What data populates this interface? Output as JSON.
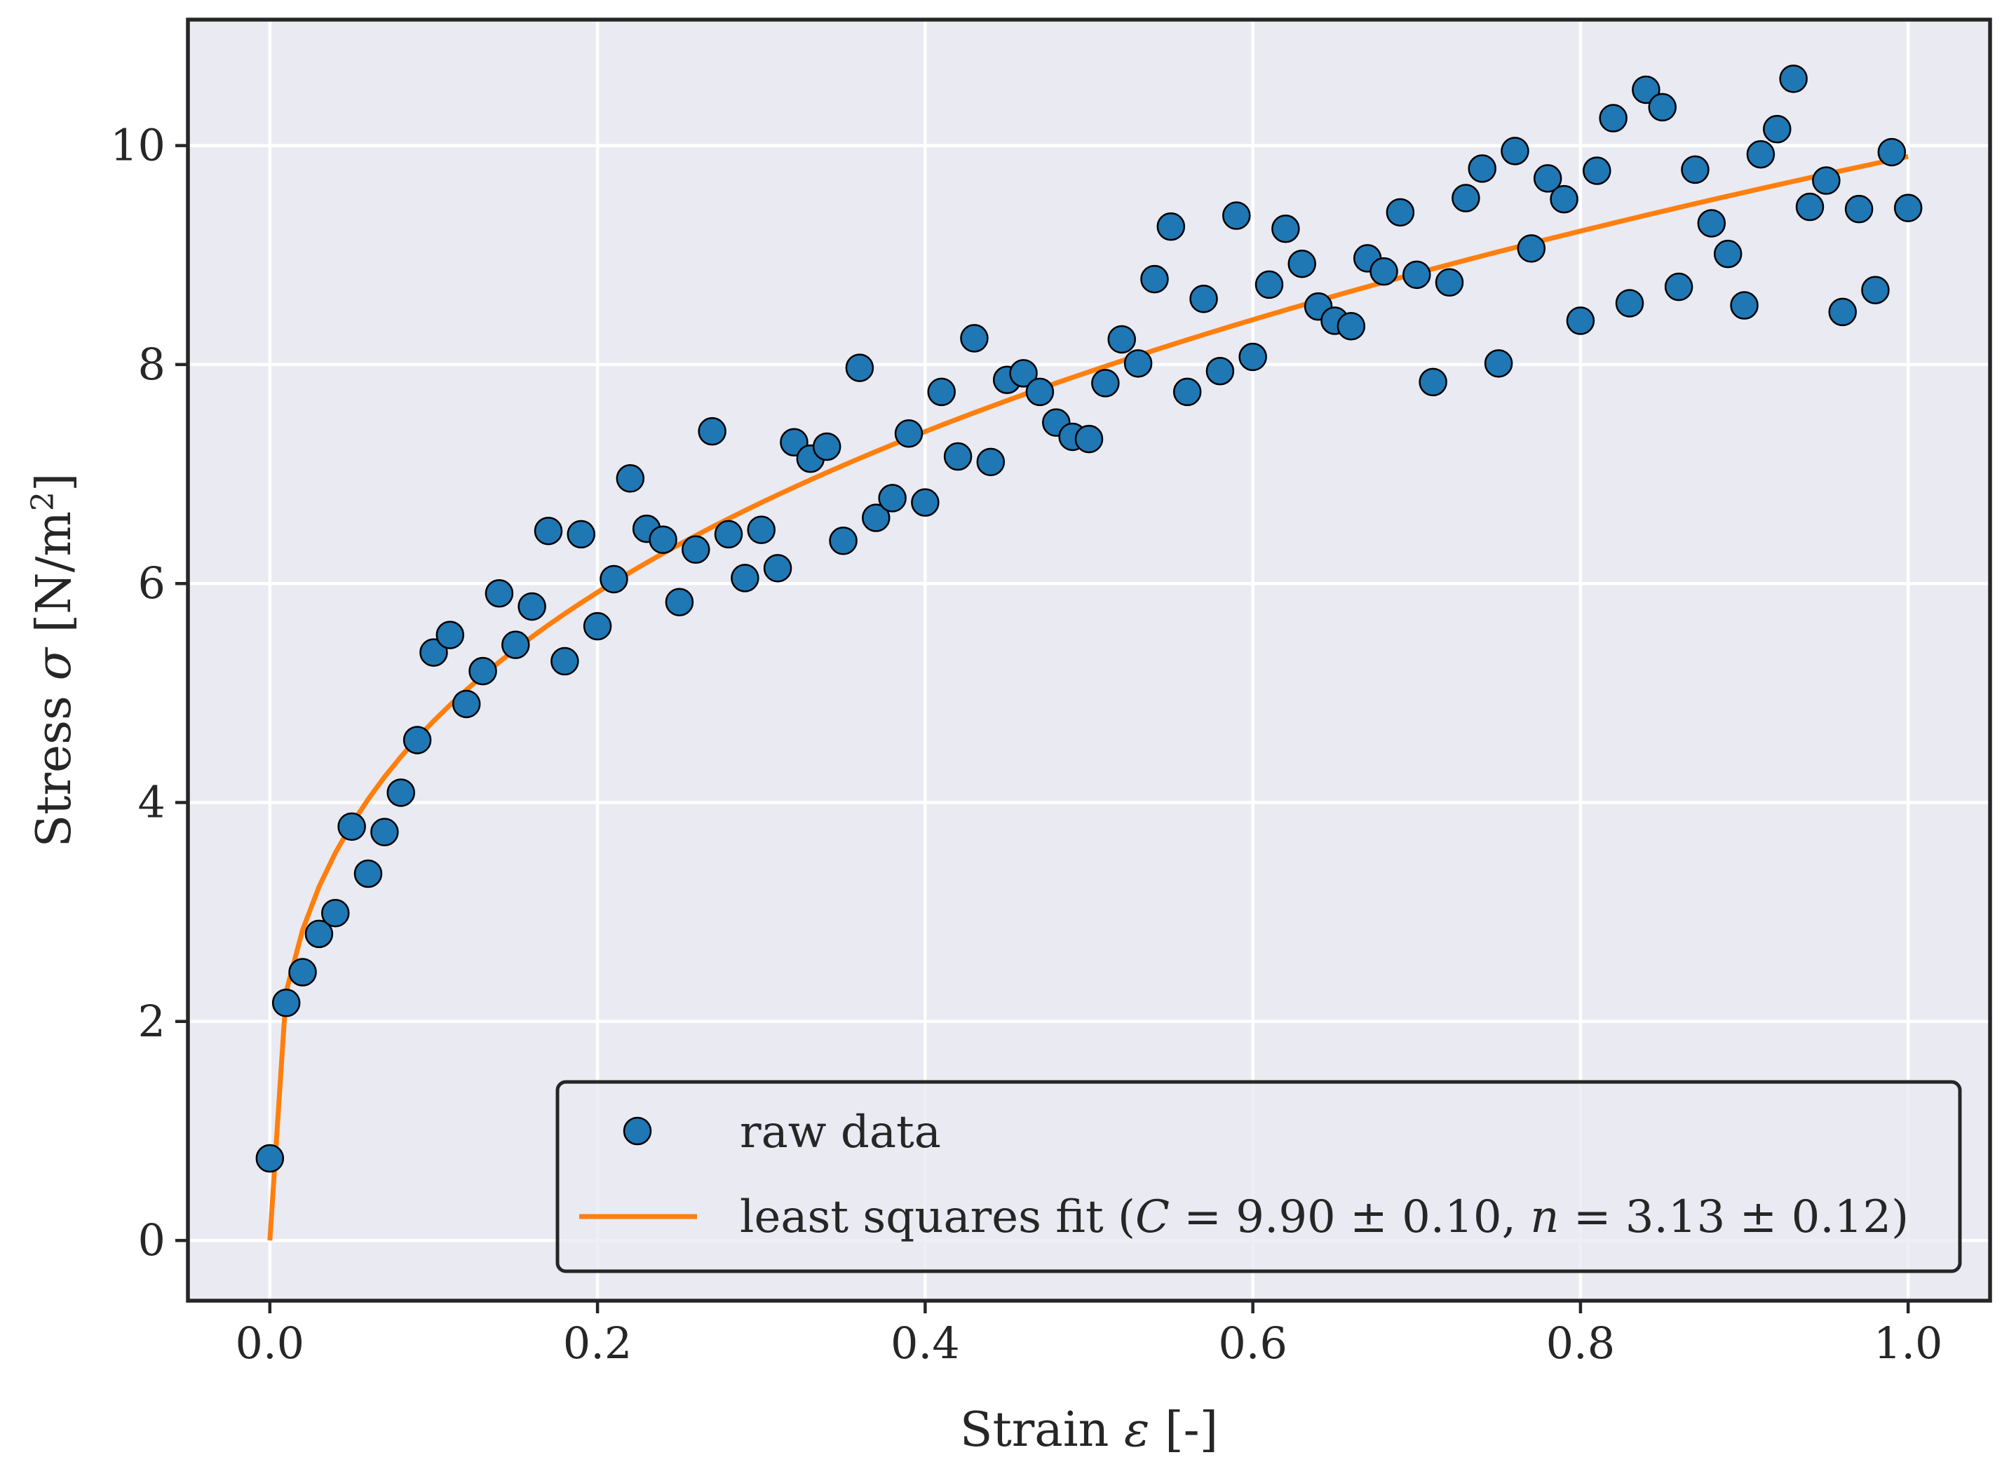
{
  "chart_data": {
    "type": "scatter",
    "xlabel": {
      "pre": "Strain ",
      "sym": "ε",
      "post": " [-]"
    },
    "ylabel": {
      "pre": "Stress ",
      "sym": "σ",
      "post": " [N/m",
      "sup": "2",
      "close": "]"
    },
    "xlim": [
      -0.05,
      1.05
    ],
    "ylim": [
      -0.55,
      11.15
    ],
    "xticks": [
      {
        "value": 0.0,
        "label": "0.0"
      },
      {
        "value": 0.2,
        "label": "0.2"
      },
      {
        "value": 0.4,
        "label": "0.4"
      },
      {
        "value": 0.6,
        "label": "0.6"
      },
      {
        "value": 0.8,
        "label": "0.8"
      },
      {
        "value": 1.0,
        "label": "1.0"
      }
    ],
    "yticks": [
      {
        "value": 0,
        "label": "0"
      },
      {
        "value": 2,
        "label": "2"
      },
      {
        "value": 4,
        "label": "4"
      },
      {
        "value": 6,
        "label": "6"
      },
      {
        "value": 8,
        "label": "8"
      },
      {
        "value": 10,
        "label": "10"
      }
    ],
    "grid": true,
    "legend_position": "bottom-right",
    "series": [
      {
        "name": "raw data",
        "kind": "scatter",
        "color": "#1f77b4",
        "edgecolor": "#000000",
        "x": [
          0.0,
          0.01,
          0.02,
          0.03,
          0.04,
          0.05,
          0.06,
          0.07,
          0.08,
          0.09,
          0.1,
          0.11,
          0.12,
          0.13,
          0.14,
          0.15,
          0.16,
          0.17,
          0.18,
          0.19,
          0.2,
          0.21,
          0.22,
          0.23,
          0.24,
          0.25,
          0.26,
          0.27,
          0.28,
          0.29,
          0.3,
          0.31,
          0.32,
          0.33,
          0.34,
          0.35,
          0.36,
          0.37,
          0.38,
          0.39,
          0.4,
          0.41,
          0.42,
          0.43,
          0.44,
          0.45,
          0.46,
          0.47,
          0.48,
          0.49,
          0.5,
          0.51,
          0.52,
          0.53,
          0.54,
          0.55,
          0.56,
          0.57,
          0.58,
          0.59,
          0.6,
          0.61,
          0.62,
          0.63,
          0.64,
          0.65,
          0.66,
          0.67,
          0.68,
          0.69,
          0.7,
          0.71,
          0.72,
          0.73,
          0.74,
          0.75,
          0.76,
          0.77,
          0.78,
          0.79,
          0.8,
          0.81,
          0.82,
          0.83,
          0.84,
          0.85,
          0.86,
          0.87,
          0.88,
          0.89,
          0.9,
          0.91,
          0.92,
          0.93,
          0.94,
          0.95,
          0.96,
          0.97,
          0.98,
          0.99,
          1.0
        ],
        "y": [
          0.75,
          2.17,
          2.45,
          2.8,
          2.99,
          3.78,
          3.35,
          3.73,
          4.09,
          4.57,
          5.37,
          5.53,
          4.9,
          5.2,
          5.91,
          5.44,
          5.79,
          6.48,
          5.29,
          6.45,
          5.61,
          6.04,
          6.96,
          6.5,
          6.4,
          5.83,
          6.31,
          7.39,
          6.45,
          6.05,
          6.49,
          6.14,
          7.29,
          7.14,
          7.25,
          6.39,
          7.97,
          6.6,
          6.78,
          7.37,
          6.74,
          7.75,
          7.16,
          8.24,
          7.11,
          7.86,
          7.92,
          7.75,
          7.47,
          7.34,
          7.32,
          7.83,
          8.23,
          8.01,
          8.78,
          9.26,
          7.75,
          8.6,
          7.94,
          9.36,
          8.07,
          8.73,
          9.24,
          8.92,
          8.53,
          8.4,
          8.35,
          8.97,
          8.85,
          9.39,
          8.82,
          7.84,
          8.75,
          9.52,
          9.79,
          8.01,
          9.95,
          9.06,
          9.7,
          9.51,
          8.4,
          9.77,
          10.25,
          8.56,
          10.51,
          10.35,
          8.71,
          9.78,
          9.29,
          9.01,
          8.54,
          9.92,
          10.15,
          10.61,
          9.44,
          9.68,
          8.48,
          9.42,
          8.68,
          9.94,
          9.43
        ]
      },
      {
        "name": {
          "pre": "least squares fit (",
          "c": "C",
          "mid": " = 9.90 ± 0.10, ",
          "n": "n",
          "post": " = 3.13 ± 0.12)"
        },
        "kind": "line",
        "color": "#ff7f0e",
        "C": 9.9,
        "n": 3.13
      }
    ]
  }
}
